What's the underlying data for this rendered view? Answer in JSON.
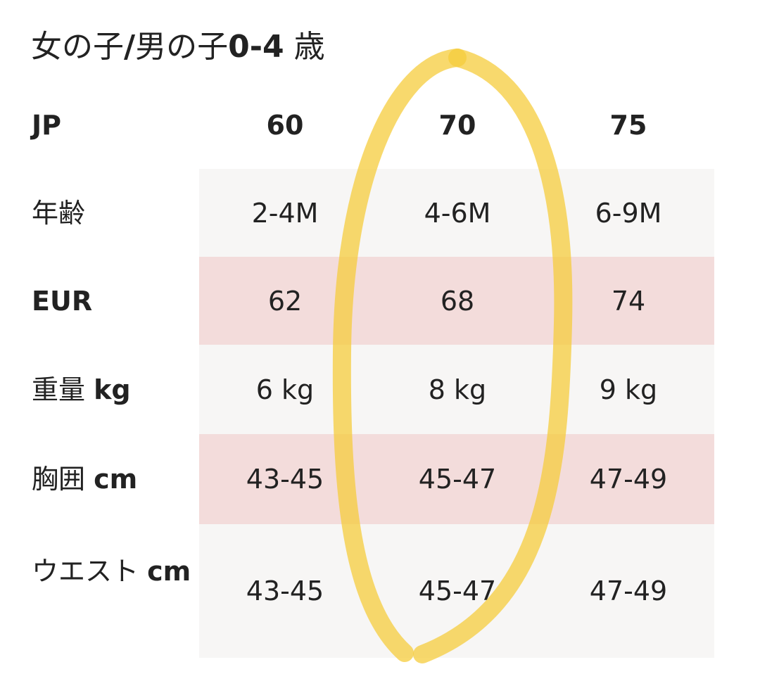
{
  "title": {
    "parts": [
      "女の子",
      "/",
      "男の子",
      "0-4",
      " 歳"
    ]
  },
  "table": {
    "header": [
      "JP",
      60,
      70,
      75
    ],
    "rows": [
      {
        "label": {
          "text": "年齢"
        },
        "cells": [
          "2-4M",
          "4-6M",
          "6-9M"
        ]
      },
      {
        "label": {
          "text": "EUR"
        },
        "cells": [
          62,
          68,
          74
        ]
      },
      {
        "label": {
          "text": "重量",
          "unit": "kg"
        },
        "cells": [
          "6 kg",
          "8 kg",
          "9 kg"
        ]
      },
      {
        "label": {
          "text": "胸囲",
          "unit": "cm"
        },
        "cells": [
          "43-45",
          "45-47",
          "47-49"
        ]
      },
      {
        "label": {
          "text": "ウエスト",
          "unit": "cm"
        },
        "cells": [
          "43-45",
          "45-47",
          "47-49"
        ]
      }
    ]
  }
}
